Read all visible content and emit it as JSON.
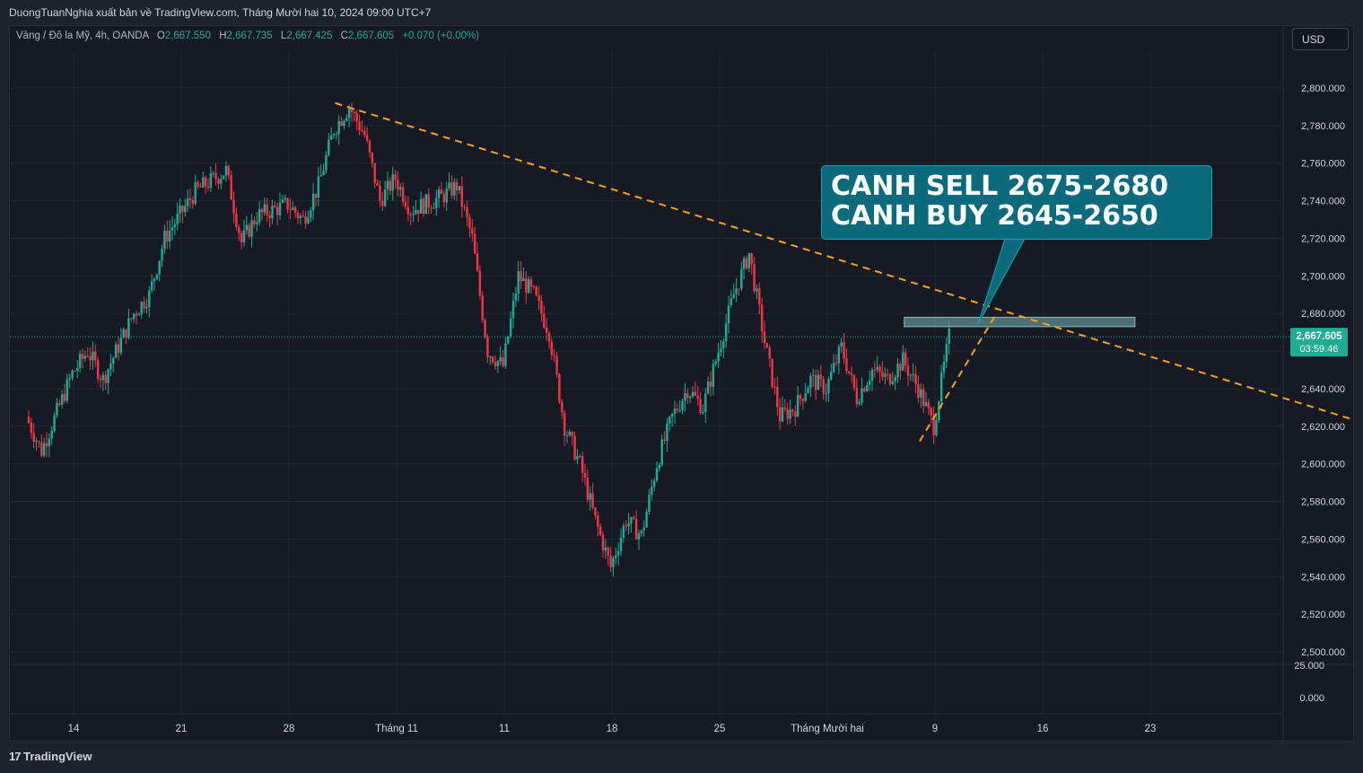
{
  "header": {
    "publisher_line": "DuongTuanNghia xuất bản về TradingView.com, Tháng Mười hai 10, 2024 09:00 UTC+7"
  },
  "legend": {
    "symbol": "Vàng / Đô la Mỹ, 4h, OANDA",
    "o_label": "O",
    "o": "2,667.550",
    "h_label": "H",
    "h": "2,667.735",
    "l_label": "L",
    "l": "2,667.425",
    "c_label": "C",
    "c": "2,667.605",
    "change": "+0.070 (+0.00%)"
  },
  "currency_button": "USD",
  "callout": {
    "line1": "CANH SELL 2675-2680",
    "line2": "CANH BUY 2645-2650"
  },
  "price_tag": {
    "price": "2,667.605",
    "countdown": "03:59:46"
  },
  "footer": {
    "logo_text": "TradingView"
  },
  "colors": {
    "up": "#22ab94",
    "down": "#f23645",
    "trendline": "#f7a21b",
    "background": "#161a25",
    "callout": "#0b6b7c"
  },
  "chart_data": {
    "type": "candlestick",
    "symbol": "XAUUSD",
    "timeframe": "4h",
    "y_ticks": [
      2800,
      2780,
      2760,
      2740,
      2720,
      2700,
      2680,
      2660,
      2640,
      2620,
      2600,
      2580,
      2560,
      2540,
      2520,
      2500
    ],
    "y_tick_labels": [
      "2,800.000",
      "2,780.000",
      "2,760.000",
      "2,740.000",
      "2,720.000",
      "2,700.000",
      "2,680.000",
      "2,660.000",
      "2,640.000",
      "2,620.000",
      "2,600.000",
      "2,580.000",
      "2,560.000",
      "2,540.000",
      "2,520.000",
      "2,500.000"
    ],
    "lower_pane_labels": [
      "25.000",
      "0.000"
    ],
    "x_ticks": [
      "14",
      "21",
      "28",
      "Tháng 11",
      "11",
      "18",
      "25",
      "Tháng Mười hai",
      "9",
      "16",
      "23"
    ],
    "last_price": 2667.605,
    "swing_path": [
      [
        "2024-10-11",
        2625
      ],
      [
        "2024-10-12",
        2607
      ],
      [
        "2024-10-14",
        2648
      ],
      [
        "2024-10-15",
        2660
      ],
      [
        "2024-10-16",
        2645
      ],
      [
        "2024-10-18",
        2680
      ],
      [
        "2024-10-19",
        2690
      ],
      [
        "2024-10-20",
        2720
      ],
      [
        "2024-10-22",
        2745
      ],
      [
        "2024-10-24",
        2756
      ],
      [
        "2024-10-25",
        2718
      ],
      [
        "2024-10-26",
        2732
      ],
      [
        "2024-10-28",
        2738
      ],
      [
        "2024-10-29",
        2730
      ],
      [
        "2024-10-30",
        2748
      ],
      [
        "2024-10-31",
        2778
      ],
      [
        "2024-11-01",
        2790
      ],
      [
        "2024-11-02",
        2775
      ],
      [
        "2024-11-03",
        2740
      ],
      [
        "2024-11-04",
        2752
      ],
      [
        "2024-11-05",
        2735
      ],
      [
        "2024-11-07",
        2742
      ],
      [
        "2024-11-08",
        2748
      ],
      [
        "2024-11-09",
        2720
      ],
      [
        "2024-11-10",
        2660
      ],
      [
        "2024-11-11",
        2652
      ],
      [
        "2024-11-12",
        2700
      ],
      [
        "2024-11-13",
        2690
      ],
      [
        "2024-11-14",
        2670
      ],
      [
        "2024-11-15",
        2620
      ],
      [
        "2024-11-16",
        2600
      ],
      [
        "2024-11-17",
        2570
      ],
      [
        "2024-11-18",
        2545
      ],
      [
        "2024-11-19",
        2570
      ],
      [
        "2024-11-20",
        2562
      ],
      [
        "2024-11-21",
        2600
      ],
      [
        "2024-11-22",
        2625
      ],
      [
        "2024-11-23",
        2640
      ],
      [
        "2024-11-24",
        2630
      ],
      [
        "2024-11-25",
        2660
      ],
      [
        "2024-11-26",
        2690
      ],
      [
        "2024-11-27",
        2712
      ],
      [
        "2024-11-28",
        2665
      ],
      [
        "2024-11-29",
        2625
      ],
      [
        "2024-11-30",
        2630
      ],
      [
        "2024-12-01",
        2645
      ],
      [
        "2024-12-02",
        2640
      ],
      [
        "2024-12-03",
        2662
      ],
      [
        "2024-12-04",
        2635
      ],
      [
        "2024-12-05",
        2650
      ],
      [
        "2024-12-06",
        2645
      ],
      [
        "2024-12-07",
        2655
      ],
      [
        "2024-12-08",
        2640
      ],
      [
        "2024-12-09",
        2620
      ],
      [
        "2024-12-10",
        2667.6
      ]
    ],
    "trendlines": [
      {
        "from": [
          "2024-10-31",
          2792
        ],
        "to": [
          "2025-01-05",
          2624
        ],
        "style": "dashed"
      },
      {
        "from": [
          "2024-12-08",
          2612
        ],
        "to": [
          "2024-12-13",
          2680
        ],
        "style": "dashed"
      }
    ],
    "zones": [
      {
        "from": "2024-12-07",
        "to": "2024-12-22",
        "low": 2673,
        "high": 2678
      }
    ]
  }
}
